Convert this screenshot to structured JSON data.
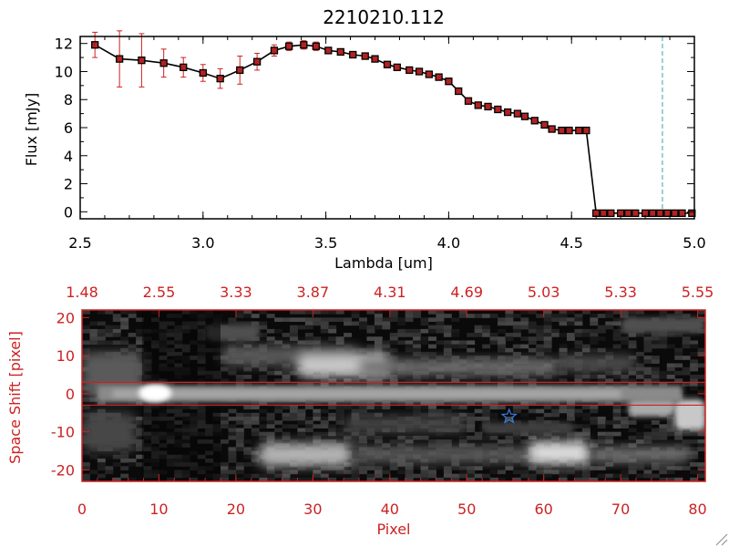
{
  "chart_data": [
    {
      "type": "line",
      "title": "2210210.112",
      "xlabel": "Lambda [um]",
      "ylabel": "Flux [mJy]",
      "xlim": [
        2.5,
        5.0
      ],
      "ylim": [
        -0.5,
        12.5
      ],
      "xticks": [
        "2.5",
        "3.0",
        "3.5",
        "4.0",
        "4.5",
        "5.0"
      ],
      "yticks": [
        "0",
        "2",
        "4",
        "6",
        "8",
        "10",
        "12"
      ],
      "grid": false,
      "series": [
        {
          "color": "#000000",
          "marker_color": "#b22222",
          "x": [
            2.56,
            2.66,
            2.75,
            2.84,
            2.92,
            3.0,
            3.07,
            3.15,
            3.22,
            3.29,
            3.35,
            3.41,
            3.46,
            3.51,
            3.56,
            3.61,
            3.66,
            3.7,
            3.75,
            3.79,
            3.84,
            3.88,
            3.92,
            3.96,
            4.0,
            4.04,
            4.08,
            4.12,
            4.16,
            4.2,
            4.24,
            4.28,
            4.31,
            4.35,
            4.39,
            4.42,
            4.46,
            4.49,
            4.53,
            4.56,
            4.6,
            4.63,
            4.66,
            4.7,
            4.73,
            4.76,
            4.8,
            4.83,
            4.86,
            4.89,
            4.92,
            4.95,
            4.99
          ],
          "y": [
            11.9,
            10.9,
            10.8,
            10.6,
            10.3,
            9.9,
            9.5,
            10.1,
            10.7,
            11.5,
            11.8,
            11.9,
            11.8,
            11.5,
            11.4,
            11.2,
            11.1,
            10.9,
            10.5,
            10.3,
            10.1,
            10.0,
            9.8,
            9.6,
            9.3,
            8.6,
            7.9,
            7.6,
            7.5,
            7.3,
            7.1,
            7.0,
            6.8,
            6.5,
            6.2,
            5.9,
            5.8,
            5.8,
            5.8,
            5.8,
            -0.1,
            -0.1,
            -0.1,
            -0.1,
            -0.1,
            -0.1,
            -0.1,
            -0.1,
            -0.1,
            -0.1,
            -0.1,
            -0.1,
            -0.1
          ],
          "yerr": [
            0.9,
            2.0,
            1.9,
            1.0,
            0.7,
            0.6,
            0.7,
            1.0,
            0.6,
            0.4,
            0.3,
            0.3,
            0.3,
            0.2,
            0.2,
            0.2,
            0.2,
            0.2,
            0.2,
            0.2,
            0.2,
            0.2,
            0.2,
            0.2,
            0.2,
            0.2,
            0.2,
            0.2,
            0.2,
            0.2,
            0.2,
            0.2,
            0.2,
            0.2,
            0.2,
            0.2,
            0.2,
            0.2,
            0.2,
            0.2,
            0.2,
            0.2,
            0.2,
            0.2,
            0.2,
            0.2,
            0.2,
            0.2,
            0.2,
            0.2,
            0.2,
            0.2,
            0.2
          ]
        }
      ],
      "reference_line": {
        "x": 4.87,
        "color": "#3aa0b8",
        "style": "dashed"
      }
    },
    {
      "type": "heatmap",
      "xlabel": "Pixel",
      "ylabel": "Space Shift [pixel]",
      "xlim": [
        0,
        81
      ],
      "ylim": [
        -23,
        22
      ],
      "xticks": [
        "0",
        "10",
        "20",
        "30",
        "40",
        "50",
        "60",
        "70",
        "80"
      ],
      "yticks": [
        "20",
        "10",
        "0",
        "-10",
        "-20"
      ],
      "top_axis_labels": [
        "1.48",
        "2.55",
        "3.33",
        "3.87",
        "4.31",
        "4.69",
        "5.03",
        "5.33",
        "5.55"
      ],
      "extraction_band": [
        -3,
        3
      ],
      "star_marker": {
        "x": 55.5,
        "y": -6,
        "color": "#3a7be0"
      },
      "axis_color": "#cc2222",
      "colormap": "grayscale"
    }
  ]
}
